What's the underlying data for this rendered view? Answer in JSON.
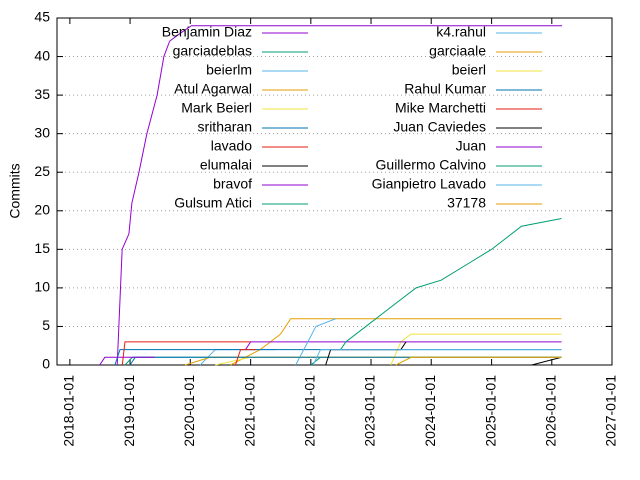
{
  "chart_data": {
    "type": "line",
    "y_label": "Commits",
    "xlim": [
      "2017-10-15",
      "2027-01-01"
    ],
    "ylim": [
      0,
      45
    ],
    "xticks": [
      "2018-01-01",
      "2019-01-01",
      "2020-01-01",
      "2021-01-01",
      "2022-01-01",
      "2023-01-01",
      "2024-01-01",
      "2025-01-01",
      "2026-01-01",
      "2027-01-01"
    ],
    "yticks": [
      0,
      5,
      10,
      15,
      20,
      25,
      30,
      35,
      40,
      45
    ],
    "grid": true,
    "series": [
      {
        "name": "Benjamin Diaz",
        "color": "#9400d3",
        "x": [
          "2018-10-15",
          "2018-11-14",
          "2018-12-25",
          "2019-01-12",
          "2019-02-24",
          "2019-04-13",
          "2019-06-14",
          "2019-07-25",
          "2019-08-29",
          "2019-10-31",
          "2020-01-08",
          "2026-03-04"
        ],
        "values": [
          0,
          15,
          17,
          21,
          25,
          30,
          35,
          40,
          42,
          43,
          44,
          44
        ]
      },
      {
        "name": "garciadeblas",
        "color": "#009e73",
        "x": [
          "2018-12-01",
          "2019-01-15",
          "2026-03-01"
        ],
        "values": [
          0,
          1,
          1
        ]
      },
      {
        "name": "beierlm",
        "color": "#56b4e9",
        "x": [
          "2020-03-01",
          "2020-06-01",
          "2021-06-01"
        ],
        "values": [
          0,
          2,
          2
        ]
      },
      {
        "name": "Atul Agarwal",
        "color": "#e69f00",
        "x": [
          "2020-09-01",
          "2021-03-01",
          "2021-05-01",
          "2021-07-01",
          "2021-09-01",
          "2026-03-01"
        ],
        "values": [
          0,
          2,
          3,
          4,
          6,
          6
        ]
      },
      {
        "name": "Mark Beierl",
        "color": "#f0e442",
        "x": [
          "2023-05-01",
          "2023-07-01",
          "2023-09-01",
          "2026-03-01"
        ],
        "values": [
          0,
          3,
          4,
          4
        ]
      },
      {
        "name": "sritharan",
        "color": "#0072b2",
        "x": [
          "2018-10-01",
          "2018-11-01",
          "2026-03-01"
        ],
        "values": [
          0,
          2,
          2
        ]
      },
      {
        "name": "lavado",
        "color": "#e51e10",
        "x": [
          "2018-11-15",
          "2018-12-01",
          "2021-01-01"
        ],
        "values": [
          0,
          3,
          3
        ]
      },
      {
        "name": "elumalai",
        "color": "#000000",
        "x": [
          "2025-09-01",
          "2026-03-01"
        ],
        "values": [
          0,
          1
        ]
      },
      {
        "name": "bravof",
        "color": "#9400d3",
        "x": [
          "2020-12-01",
          "2021-01-01",
          "2026-03-01"
        ],
        "values": [
          2,
          3,
          3
        ]
      },
      {
        "name": "Gulsum Atici",
        "color": "#009e73",
        "x": [
          "2022-01-01",
          "2022-03-01",
          "2022-06-01"
        ],
        "values": [
          0,
          1,
          1
        ]
      },
      {
        "name": "k4.rahul",
        "color": "#56b4e9",
        "x": [
          "2021-10-01",
          "2022-02-01",
          "2022-06-01"
        ],
        "values": [
          0,
          5,
          6
        ]
      },
      {
        "name": "garciaale",
        "color": "#e69f00",
        "x": [
          "2019-12-01",
          "2020-05-01",
          "2026-03-01"
        ],
        "values": [
          0,
          1,
          1
        ]
      },
      {
        "name": "beierl",
        "color": "#f0e442",
        "x": [
          "2020-06-01",
          "2021-01-01",
          "2026-03-01"
        ],
        "values": [
          0,
          1,
          1
        ]
      },
      {
        "name": "Rahul Kumar",
        "color": "#0072b2",
        "x": [
          "2019-01-01",
          "2019-02-01",
          "2026-03-01"
        ],
        "values": [
          0,
          1,
          1
        ]
      },
      {
        "name": "Mike Marchetti",
        "color": "#e51e10",
        "x": [
          "2020-10-01",
          "2020-11-01",
          "2021-02-01"
        ],
        "values": [
          0,
          2,
          2
        ]
      },
      {
        "name": "Juan Caviedes",
        "color": "#000000",
        "x": [
          "2022-04-01",
          "2022-05-01",
          "2023-07-01",
          "2023-08-01"
        ],
        "values": [
          0,
          2,
          2,
          3
        ]
      },
      {
        "name": "Juan",
        "color": "#9400d3",
        "x": [
          "2018-07-01",
          "2018-08-01",
          "2019-06-01"
        ],
        "values": [
          0,
          1,
          1
        ]
      },
      {
        "name": "Guillermo Calvino",
        "color": "#009e73",
        "x": [
          "2022-07-01",
          "2022-08-01",
          "2022-12-01",
          "2023-04-01",
          "2023-10-01",
          "2024-03-01",
          "2024-08-01",
          "2025-01-01",
          "2025-07-01",
          "2026-03-01"
        ],
        "values": [
          2,
          3,
          5,
          7,
          10,
          11,
          13,
          15,
          18,
          19
        ]
      },
      {
        "name": "Gianpietro Lavado",
        "color": "#56b4e9",
        "x": [
          "2022-01-15",
          "2022-03-01",
          "2026-03-01"
        ],
        "values": [
          0,
          2,
          2
        ]
      },
      {
        "name": "37178",
        "color": "#e69f00",
        "x": [
          "2023-06-01",
          "2023-09-01",
          "2026-03-01"
        ],
        "values": [
          0,
          1,
          1
        ]
      }
    ]
  }
}
